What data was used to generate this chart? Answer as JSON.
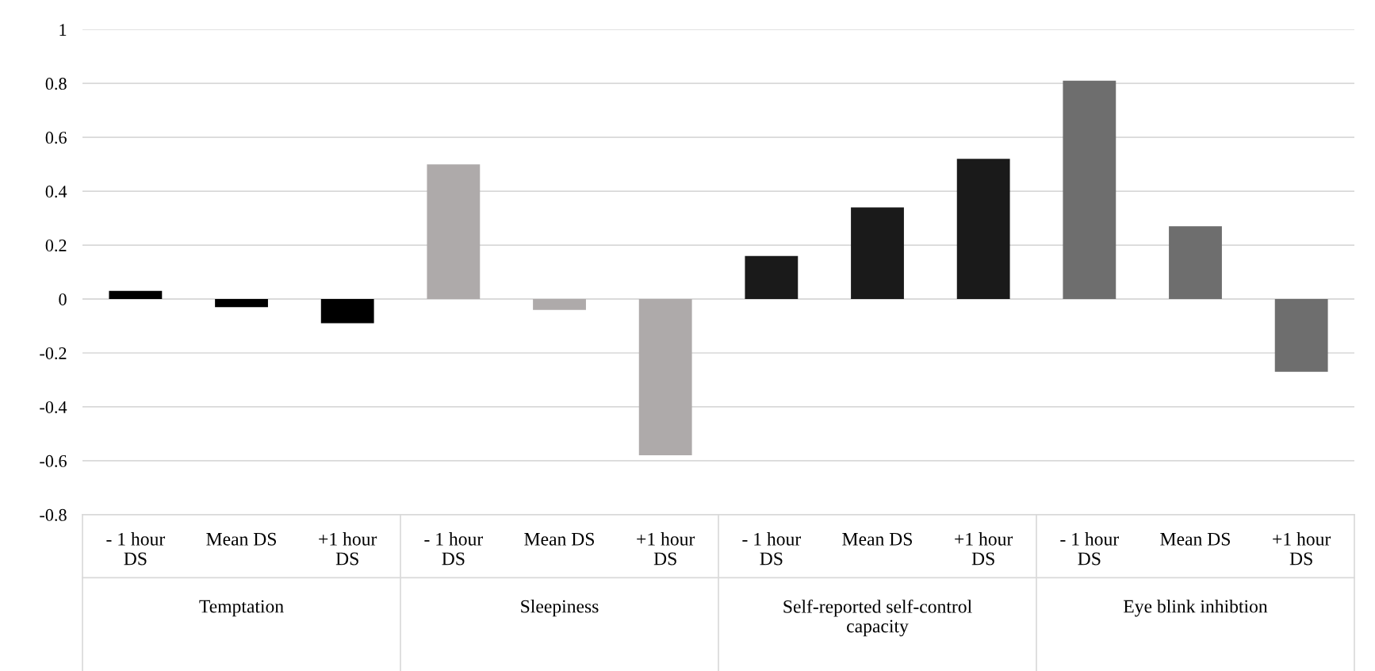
{
  "chart_data": {
    "type": "bar",
    "categories": [
      "- 1 hour DS",
      "Mean DS",
      "+1 hour DS",
      "- 1 hour DS",
      "Mean DS",
      "+1 hour DS",
      "- 1 hour DS",
      "Mean DS",
      "+1 hour DS",
      "- 1 hour DS",
      "Mean DS",
      "+1 hour DS"
    ],
    "values": [
      0.03,
      -0.03,
      -0.09,
      0.5,
      -0.04,
      -0.58,
      0.16,
      0.34,
      0.52,
      0.81,
      0.27,
      -0.27
    ],
    "colors": [
      "#000000",
      "#000000",
      "#000000",
      "#aeaaaa",
      "#aeaaaa",
      "#aeaaaa",
      "#1a1a1a",
      "#1a1a1a",
      "#1a1a1a",
      "#6e6e6e",
      "#6e6e6e",
      "#6e6e6e"
    ],
    "annotations": [
      "Temptation",
      "Sleepiness",
      "Self-reported self-control capacity",
      "Eye blink inhibtion"
    ],
    "ylim": [
      -0.8,
      1
    ],
    "yticks": [
      -0.8,
      -0.6,
      -0.4,
      -0.2,
      0,
      0.2,
      0.4,
      0.6,
      0.8,
      1
    ],
    "grid": "y"
  }
}
